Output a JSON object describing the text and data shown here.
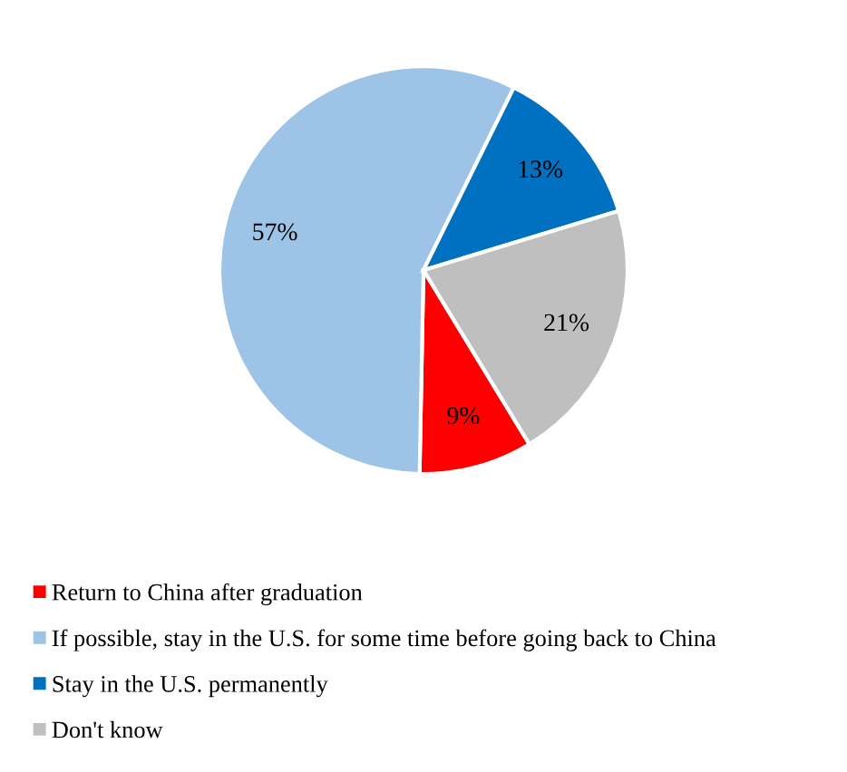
{
  "chart_data": {
    "type": "pie",
    "categories": [
      "Return to China after graduation",
      "If possible, stay in the U.S. for some time before going back to China",
      "Stay in the U.S. permanently",
      "Don't know"
    ],
    "values": [
      9,
      57,
      13,
      21
    ],
    "colors": [
      "#ff0000",
      "#9dc3e6",
      "#0070c0",
      "#bfbfbf"
    ],
    "value_labels": [
      "9%",
      "57%",
      "13%",
      "21%"
    ],
    "legend": "bottom"
  }
}
